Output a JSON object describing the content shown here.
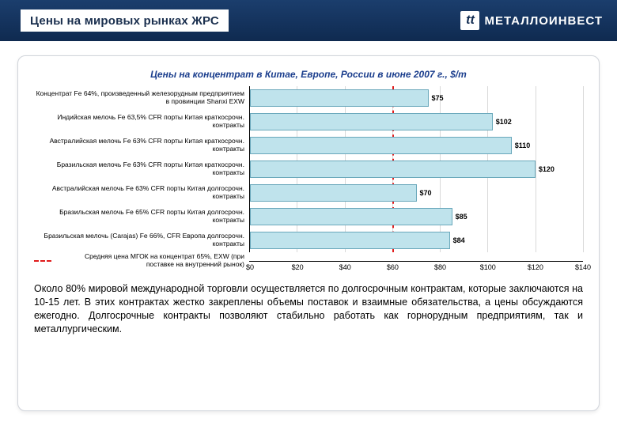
{
  "header": {
    "title": "Цены на мировых рынках ЖРС",
    "title_color": "#1a2f4e",
    "title_fontsize": 15,
    "brand_logo_letter": "tt",
    "brand_name": "МЕТАЛЛОИНВЕСТ"
  },
  "chart": {
    "type": "bar-horizontal",
    "title": "Цены на концентрат в Китае, Европе, России в июне 2007 г., $/т",
    "title_color": "#1b3e8d",
    "title_fontsize": 12,
    "xlim": [
      0,
      140
    ],
    "xtick_step": 20,
    "xticks": [
      "$0",
      "$20",
      "$40",
      "$60",
      "$80",
      "$100",
      "$120",
      "$140"
    ],
    "reference_line_x": 60,
    "reference_line_color": "#e01b1b",
    "bar_color": "#bfe3ec",
    "bar_border": "#6aa8bb",
    "grid_color": "#d9d9d9",
    "label_fontsize": 8.5,
    "value_fontsize": 9,
    "plot_bg": "#ffffff",
    "rows": [
      {
        "label": "Концентрат Fe 64%, произведенный железорудным предприятием в провинции Shanxi EXW",
        "value": 75,
        "display": "$75"
      },
      {
        "label": "Индийская мелочь Fe 63,5% CFR порты Китая краткосрочн. контракты",
        "value": 102,
        "display": "$102"
      },
      {
        "label": "Австралийская мелочь Fe 63% CFR порты Китая краткосрочн. контракты",
        "value": 110,
        "display": "$110"
      },
      {
        "label": "Бразильская мелочь Fe 63% CFR порты Китая краткосрочн. контракты",
        "value": 120,
        "display": "$120"
      },
      {
        "label": "Австралийская мелочь Fe 63% CFR порты Китая долгосрочн. контракты",
        "value": 70,
        "display": "$70"
      },
      {
        "label": "Бразильская мелочь Fe 65% CFR порты Китая долгосрочн. контракты",
        "value": 85,
        "display": "$85"
      },
      {
        "label": "Бразильская мелочь (Carajas) Fe 66%, CFR Европа долгосрочн. контракты",
        "value": 84,
        "display": "$84"
      }
    ],
    "footnote": "Средняя цена МГОК на концентрат 65%, EXW (при поставке на внутренний рынок)"
  },
  "body_text": "Около 80% мировой международной торговли осуществляется по долгосрочным контрактам, которые заключаются на 10-15 лет. В этих контрактах жестко закреплены объемы поставок и взаимные обязательства, а цены обсуждаются ежегодно. Долгосрочные контракты позволяют стабильно работать как горнорудным предприятиям, так и металлургическим."
}
